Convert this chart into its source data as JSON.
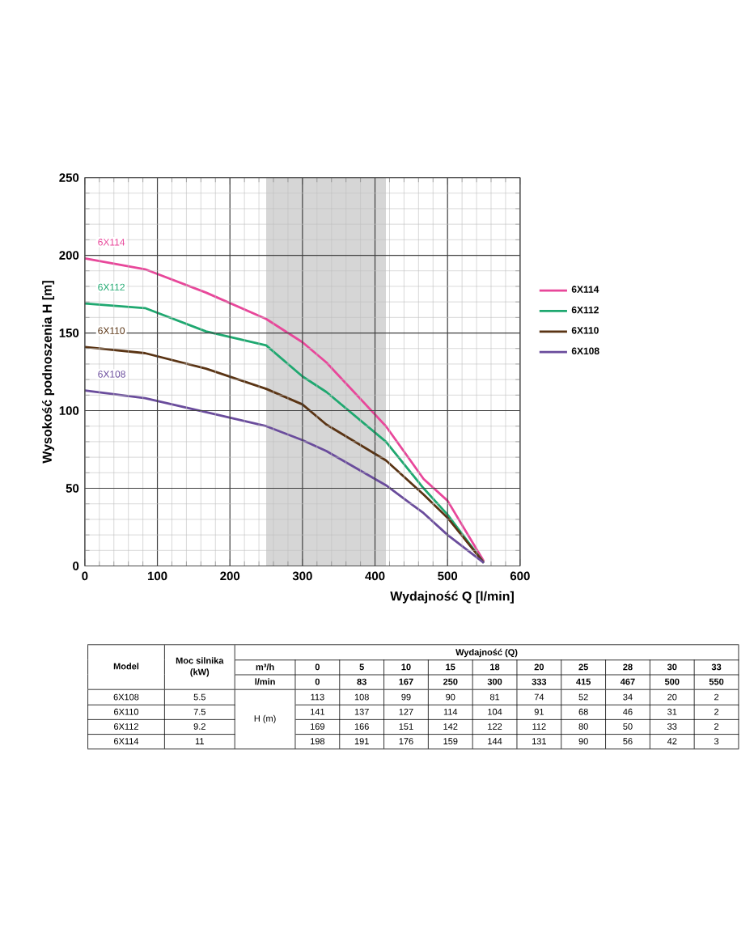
{
  "chart_data": {
    "type": "line",
    "xlabel": "Wydajność Q [l/min]",
    "ylabel": "Wysokość podnoszenia H [m]",
    "x": [
      0,
      83,
      167,
      250,
      300,
      333,
      415,
      467,
      500,
      550
    ],
    "series": [
      {
        "name": "6X114",
        "color": "#e8479a",
        "values": [
          198,
          191,
          176,
          159,
          144,
          131,
          90,
          56,
          42,
          3
        ]
      },
      {
        "name": "6X112",
        "color": "#1fa870",
        "values": [
          169,
          166,
          151,
          142,
          122,
          112,
          80,
          50,
          33,
          2
        ]
      },
      {
        "name": "6X110",
        "color": "#5a3414",
        "values": [
          141,
          137,
          127,
          114,
          104,
          91,
          68,
          46,
          31,
          2
        ]
      },
      {
        "name": "6X108",
        "color": "#6a4c9c",
        "values": [
          113,
          108,
          99,
          90,
          81,
          74,
          52,
          34,
          20,
          2
        ]
      }
    ],
    "xlim": [
      0,
      600
    ],
    "xticks": [
      0,
      100,
      200,
      300,
      400,
      500,
      600
    ],
    "ylim": [
      0,
      250
    ],
    "yticks": [
      0,
      50,
      100,
      150,
      200,
      250
    ],
    "bands": [
      {
        "axis": "x",
        "from": 250,
        "to": 415,
        "color": "#d6d6d6"
      }
    ],
    "grid": true,
    "legend": "right",
    "marker": "none",
    "line_style": "solid",
    "annotations": [
      "Model",
      "Moc silnika (kW)",
      "Wydajność (Q)",
      "m³/h",
      "l/min",
      "H (m)",
      "0",
      "5",
      "10",
      "15",
      "18",
      "20",
      "25",
      "28",
      "30",
      "33",
      "5.5",
      "7.5",
      "9.2",
      "11",
      "0",
      "83",
      "167",
      "250",
      "300",
      "333",
      "415",
      "467",
      "500",
      "550",
      "113",
      "108",
      "99",
      "90",
      "81",
      "74",
      "52",
      "34",
      "20",
      "2",
      "141",
      "137",
      "127",
      "114",
      "104",
      "91",
      "68",
      "46",
      "31",
      "2",
      "169",
      "166",
      "151",
      "142",
      "122",
      "112",
      "80",
      "50",
      "33",
      "2",
      "198",
      "191",
      "176",
      "159",
      "144",
      "131",
      "90",
      "56",
      "42",
      "3"
    ]
  }
}
